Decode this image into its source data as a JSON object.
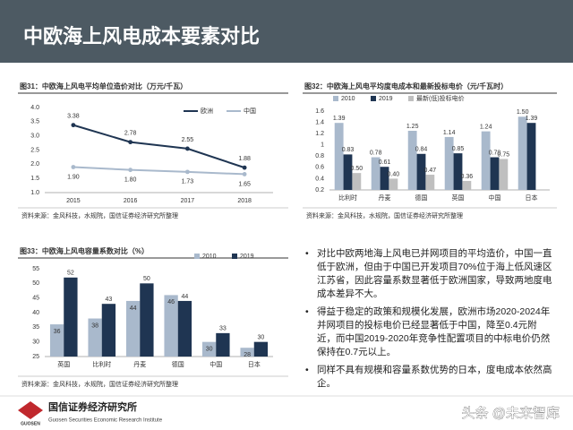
{
  "header": {
    "title": "中欧海上风电成本要素对比"
  },
  "chart_data": [
    {
      "type": "line",
      "title": "图31：中欧海上风电平均单位造价对比（万元/千瓦）",
      "categories": [
        "2015",
        "2016",
        "2017",
        "2018"
      ],
      "series": [
        {
          "name": "欧洲",
          "color": "#1f3552",
          "values": [
            3.38,
            2.78,
            2.55,
            1.88
          ],
          "value_labels": [
            "3.38",
            "2.78",
            "2.55",
            "1.88"
          ]
        },
        {
          "name": "中国",
          "color": "#a9b9cc",
          "values": [
            1.9,
            1.8,
            1.73,
            1.65
          ],
          "value_labels": [
            "1.90",
            "1.80",
            "1.73",
            "1.65"
          ]
        }
      ],
      "ylim": [
        1.0,
        4.0
      ],
      "yticks": [
        {
          "value": 1.0,
          "label": "1.0"
        },
        1.5,
        {
          "value": 2.0,
          "label": "2.0"
        },
        2.5,
        {
          "value": 3.0,
          "label": "3.0"
        },
        3.5,
        {
          "value": 4.0,
          "label": "4.0"
        }
      ],
      "legend": "top-right",
      "source": "资料来源：金风科技，水规院，国信证券经济研究所整理"
    },
    {
      "type": "bar",
      "title": "图32：中欧海上风电平均度电成本和最新投标电价（元/千瓦时）",
      "categories": [
        "比利时",
        "丹麦",
        "德国",
        "英国",
        "中国",
        "日本"
      ],
      "series": [
        {
          "name": "2010",
          "color": "#a9b9cc",
          "values": [
            1.39,
            0.78,
            1.25,
            1.14,
            1.24,
            1.5
          ],
          "value_labels": [
            "1.39",
            "0.78",
            "1.25",
            "1.14",
            "1.24",
            "1.50"
          ]
        },
        {
          "name": "2019",
          "color": "#1f3552",
          "values": [
            0.83,
            0.61,
            0.84,
            0.85,
            0.78,
            1.39
          ],
          "value_labels": [
            "0.83",
            "0.61",
            "0.84",
            "0.85",
            "0.78",
            "1.39"
          ]
        },
        {
          "name": "最新(低)投标电价",
          "color": "#bfbfbf",
          "values": [
            0.5,
            0.4,
            0.47,
            0.36,
            0.75,
            null
          ],
          "value_labels": [
            "0.50",
            "0.40",
            "0.47",
            "0.36",
            "0.75",
            null
          ]
        }
      ],
      "ylim": [
        0.2,
        1.6
      ],
      "yticks": [
        0.2,
        0.4,
        0.6,
        0.8,
        1,
        1.2,
        1.4,
        1.6
      ],
      "legend": "top-left",
      "source": "资料来源：金风科技，水规院，国信证券经济研究所整理"
    },
    {
      "type": "bar",
      "title": "图33：中欧海上风电容量系数对比（%）",
      "categories": [
        "英国",
        "比利时",
        "丹麦",
        "德国",
        "中国",
        "日本"
      ],
      "series": [
        {
          "name": "2010",
          "color": "#a9b9cc",
          "values": [
            36,
            38,
            44,
            46,
            30,
            28
          ]
        },
        {
          "name": "2019",
          "color": "#1f3552",
          "values": [
            52,
            43,
            50,
            44,
            33,
            30
          ]
        }
      ],
      "ylim": [
        25,
        55
      ],
      "yticks": [
        25,
        30,
        35,
        40,
        45,
        50,
        55
      ],
      "legend": "top-right",
      "source": "资料来源：金风科技，水规院，国信证券经济研究所整理"
    }
  ],
  "bullets": [
    "对比中欧两地海上风电已并网项目的平均造价，中国一直低于欧洲，但由于中国已开发项目70%位于海上低风速区江苏省，因此容量系数显著低于欧洲国家，导致两地度电成本差异不大。",
    "得益于稳定的政策和规模化发展，欧洲市场2020-2024年并网项目的投标电价已经显著低于中国，降至0.4元附近，而中国2019-2020年竞争性配置项目的中标电价仍然保持在0.7元以上。",
    "同样不具有规模和容量系数优势的日本，度电成本依然高企。"
  ],
  "footer": {
    "logo": "GUOSEN",
    "org": "国信证券经济研究所",
    "org_en": "Guosen Securities Economic Research Institute",
    "watermark": "头条 @未来智库"
  }
}
